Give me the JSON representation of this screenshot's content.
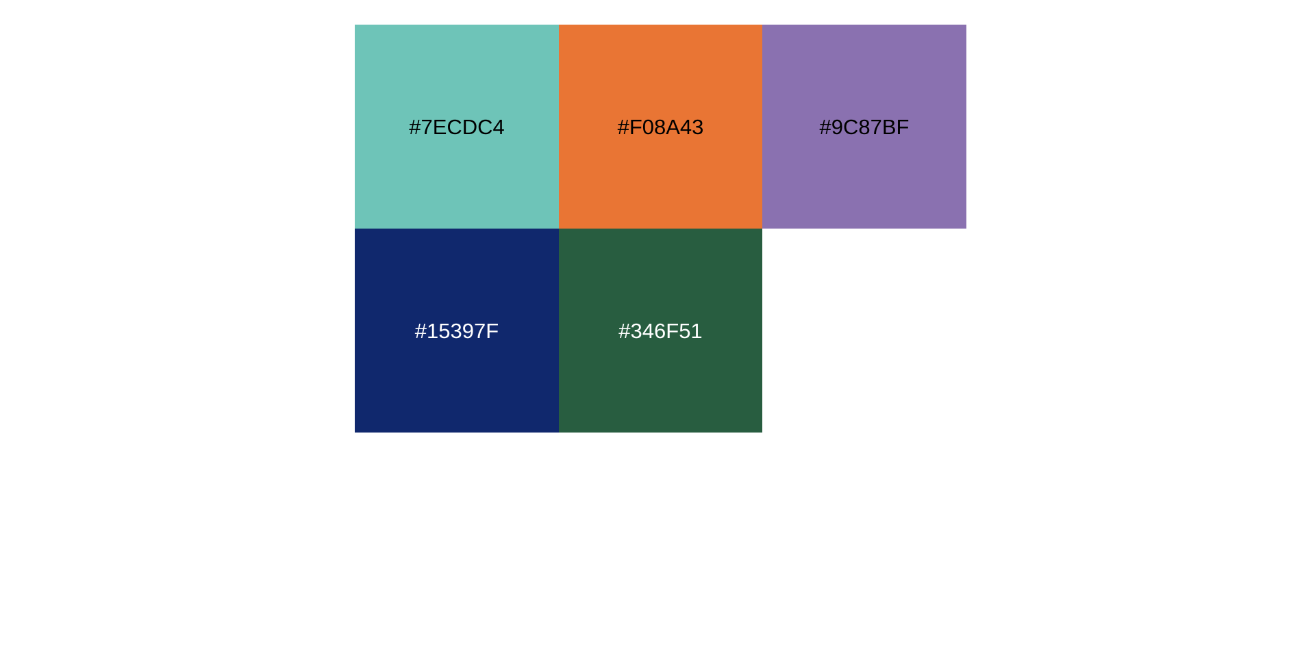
{
  "palette": {
    "swatches": [
      {
        "label": "#7ECDC4",
        "fill": "#6EC4B8",
        "text_color": "#000000"
      },
      {
        "label": "#F08A43",
        "fill": "#E97534",
        "text_color": "#000000"
      },
      {
        "label": "#9C87BF",
        "fill": "#8A71B0",
        "text_color": "#000000"
      },
      {
        "label": "#15397F",
        "fill": "#10286D",
        "text_color": "#FFFFFF"
      },
      {
        "label": "#346F51",
        "fill": "#285D40",
        "text_color": "#FFFFFF"
      }
    ]
  }
}
